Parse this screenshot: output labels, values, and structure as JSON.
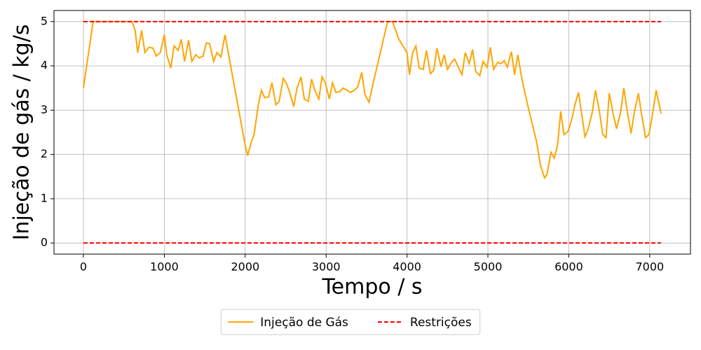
{
  "chart_data": {
    "type": "line",
    "xlabel": "Tempo / s",
    "ylabel": "Injeção de gás / kg/s",
    "xlim": [
      -364,
      7504
    ],
    "ylim": [
      -0.25,
      5.25
    ],
    "xticks": [
      0,
      1000,
      2000,
      3000,
      4000,
      5000,
      6000,
      7000
    ],
    "yticks": [
      0,
      1,
      2,
      3,
      4,
      5
    ],
    "grid": true,
    "legend": "lower center outside",
    "series": [
      {
        "name": "Injeção de Gás",
        "color": "#ffa500",
        "dash": false,
        "x": [
          0,
          120,
          600,
          640,
          670,
          720,
          760,
          810,
          860,
          900,
          950,
          1000,
          1030,
          1080,
          1120,
          1170,
          1210,
          1250,
          1300,
          1340,
          1390,
          1430,
          1480,
          1520,
          1560,
          1610,
          1650,
          1700,
          1750,
          2000,
          2030,
          2070,
          2110,
          2160,
          2200,
          2240,
          2290,
          2330,
          2380,
          2420,
          2470,
          2510,
          2550,
          2600,
          2640,
          2690,
          2730,
          2780,
          2820,
          2860,
          2910,
          2950,
          2990,
          3040,
          3080,
          3120,
          3170,
          3210,
          3260,
          3300,
          3350,
          3390,
          3440,
          3480,
          3530,
          3580,
          3760,
          3820,
          3900,
          4000,
          4030,
          4070,
          4110,
          4150,
          4200,
          4240,
          4290,
          4330,
          4370,
          4420,
          4460,
          4500,
          4550,
          4590,
          4640,
          4680,
          4720,
          4770,
          4810,
          4850,
          4900,
          4940,
          4990,
          5030,
          5070,
          5120,
          5160,
          5200,
          5240,
          5290,
          5330,
          5370,
          5420,
          5500,
          5600,
          5650,
          5700,
          5730,
          5780,
          5820,
          5860,
          5900,
          5940,
          5990,
          6030,
          6080,
          6120,
          6160,
          6200,
          6240,
          6290,
          6330,
          6380,
          6420,
          6460,
          6500,
          6550,
          6590,
          6640,
          6680,
          6720,
          6770,
          6810,
          6860,
          6900,
          6950,
          6990,
          7030,
          7080,
          7140
        ],
        "values": [
          3.5,
          5.0,
          5.0,
          4.8,
          4.3,
          4.8,
          4.3,
          4.42,
          4.4,
          4.22,
          4.3,
          4.7,
          4.25,
          3.95,
          4.45,
          4.35,
          4.6,
          4.1,
          4.58,
          4.1,
          4.25,
          4.18,
          4.22,
          4.52,
          4.5,
          4.1,
          4.3,
          4.2,
          4.7,
          2.2,
          1.97,
          2.25,
          2.45,
          3.1,
          3.45,
          3.28,
          3.3,
          3.62,
          3.12,
          3.2,
          3.72,
          3.6,
          3.4,
          3.08,
          3.5,
          3.75,
          3.25,
          3.2,
          3.7,
          3.45,
          3.25,
          3.75,
          3.62,
          3.25,
          3.62,
          3.4,
          3.42,
          3.5,
          3.45,
          3.4,
          3.45,
          3.52,
          3.85,
          3.35,
          3.18,
          3.6,
          5.0,
          5.0,
          4.6,
          4.3,
          3.8,
          4.3,
          4.45,
          3.95,
          3.92,
          4.35,
          3.82,
          3.9,
          4.4,
          3.98,
          4.25,
          3.92,
          4.08,
          4.15,
          3.95,
          3.8,
          4.3,
          4.05,
          4.37,
          3.87,
          3.78,
          4.1,
          3.97,
          4.42,
          3.92,
          4.08,
          4.05,
          4.12,
          3.97,
          4.32,
          3.8,
          4.25,
          3.7,
          3.05,
          2.3,
          1.75,
          1.47,
          1.55,
          2.05,
          1.92,
          2.2,
          2.97,
          2.45,
          2.52,
          2.75,
          3.15,
          3.4,
          2.9,
          2.4,
          2.58,
          2.95,
          3.45,
          2.95,
          2.45,
          2.38,
          3.38,
          2.9,
          2.58,
          2.95,
          3.5,
          3.0,
          2.48,
          2.95,
          3.38,
          2.9,
          2.38,
          2.45,
          2.85,
          3.45,
          2.92
        ]
      },
      {
        "name": "Restrições",
        "color": "#ff0000",
        "dash": true,
        "x": [
          0,
          7140
        ],
        "values": [
          5,
          5
        ]
      },
      {
        "color": "#ff0000",
        "dash": true,
        "x": [
          0,
          7140
        ],
        "values": [
          0,
          0
        ]
      }
    ]
  }
}
